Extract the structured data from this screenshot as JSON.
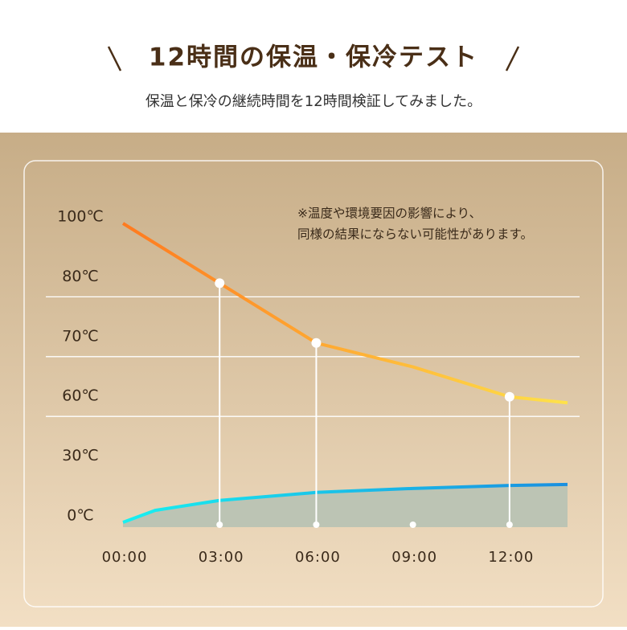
{
  "chart_data": {
    "type": "line",
    "title": "12時間の保温・保冷テスト",
    "subtitle": "保温と保冷の継続時間を12時間検証してみました。",
    "annotation": [
      "※温度や環境要因の影響により、",
      "同様の結果にならない可能性があります。"
    ],
    "y_scale": "even-ticks",
    "ylim": [
      0,
      100
    ],
    "yticks": [
      {
        "value": 100,
        "label": "100℃"
      },
      {
        "value": 80,
        "label": "80℃"
      },
      {
        "value": 70,
        "label": "70℃"
      },
      {
        "value": 60,
        "label": "60℃"
      },
      {
        "value": 30,
        "label": "30℃"
      },
      {
        "value": 0,
        "label": "0℃"
      }
    ],
    "grid_values": [
      80,
      70,
      60
    ],
    "xlim": [
      0,
      13.8
    ],
    "xticks": [
      {
        "value": 0,
        "label": "00:00"
      },
      {
        "value": 3,
        "label": "03:00"
      },
      {
        "value": 6,
        "label": "06:00"
      },
      {
        "value": 9,
        "label": "09:00"
      },
      {
        "value": 12,
        "label": "12:00"
      }
    ],
    "series": [
      {
        "x": [
          0,
          3,
          6,
          9,
          12,
          13.8
        ],
        "values": [
          100,
          80,
          70,
          66,
          61,
          60
        ],
        "colors": [
          "#ff7a1f",
          "#ffe24a"
        ],
        "markers": [
          3,
          6,
          12
        ]
      },
      {
        "x": [
          0,
          1,
          3,
          6,
          9,
          12,
          13.8
        ],
        "values": [
          0,
          6,
          11,
          15,
          17,
          18.5,
          19
        ],
        "colors": [
          "#19f0f0",
          "#1a8fe0"
        ],
        "fill": "#bcc4b4"
      }
    ]
  }
}
